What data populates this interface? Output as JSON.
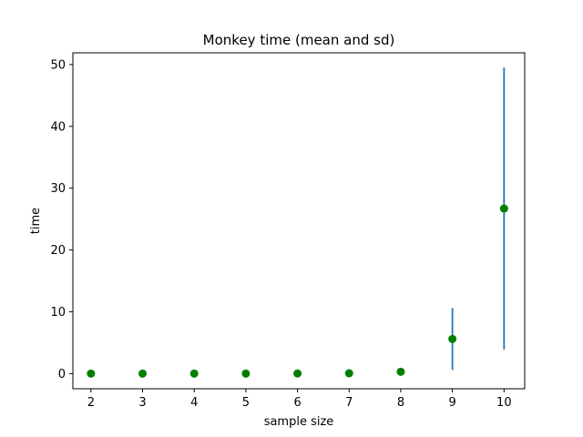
{
  "chart_data": {
    "type": "scatter",
    "title": "Monkey time (mean and sd)",
    "xlabel": "sample size",
    "ylabel": "time",
    "xlim": [
      1.65,
      10.4
    ],
    "ylim": [
      -2.45,
      51.9
    ],
    "xticks": [
      2,
      3,
      4,
      5,
      6,
      7,
      8,
      9,
      10
    ],
    "yticks": [
      0,
      10,
      20,
      30,
      40,
      50
    ],
    "grid": false,
    "marker_color": "#008000",
    "errorbar_color": "#1f77b4",
    "series": [
      {
        "x": [
          2,
          3,
          4,
          5,
          6,
          7,
          8,
          9,
          10
        ],
        "y": [
          0.0,
          0.0,
          0.0,
          0.0,
          0.02,
          0.05,
          0.3,
          5.6,
          26.7
        ],
        "sd": [
          0.0,
          0.0,
          0.0,
          0.0,
          0.0,
          0.02,
          0.15,
          5.0,
          22.8
        ]
      }
    ]
  }
}
